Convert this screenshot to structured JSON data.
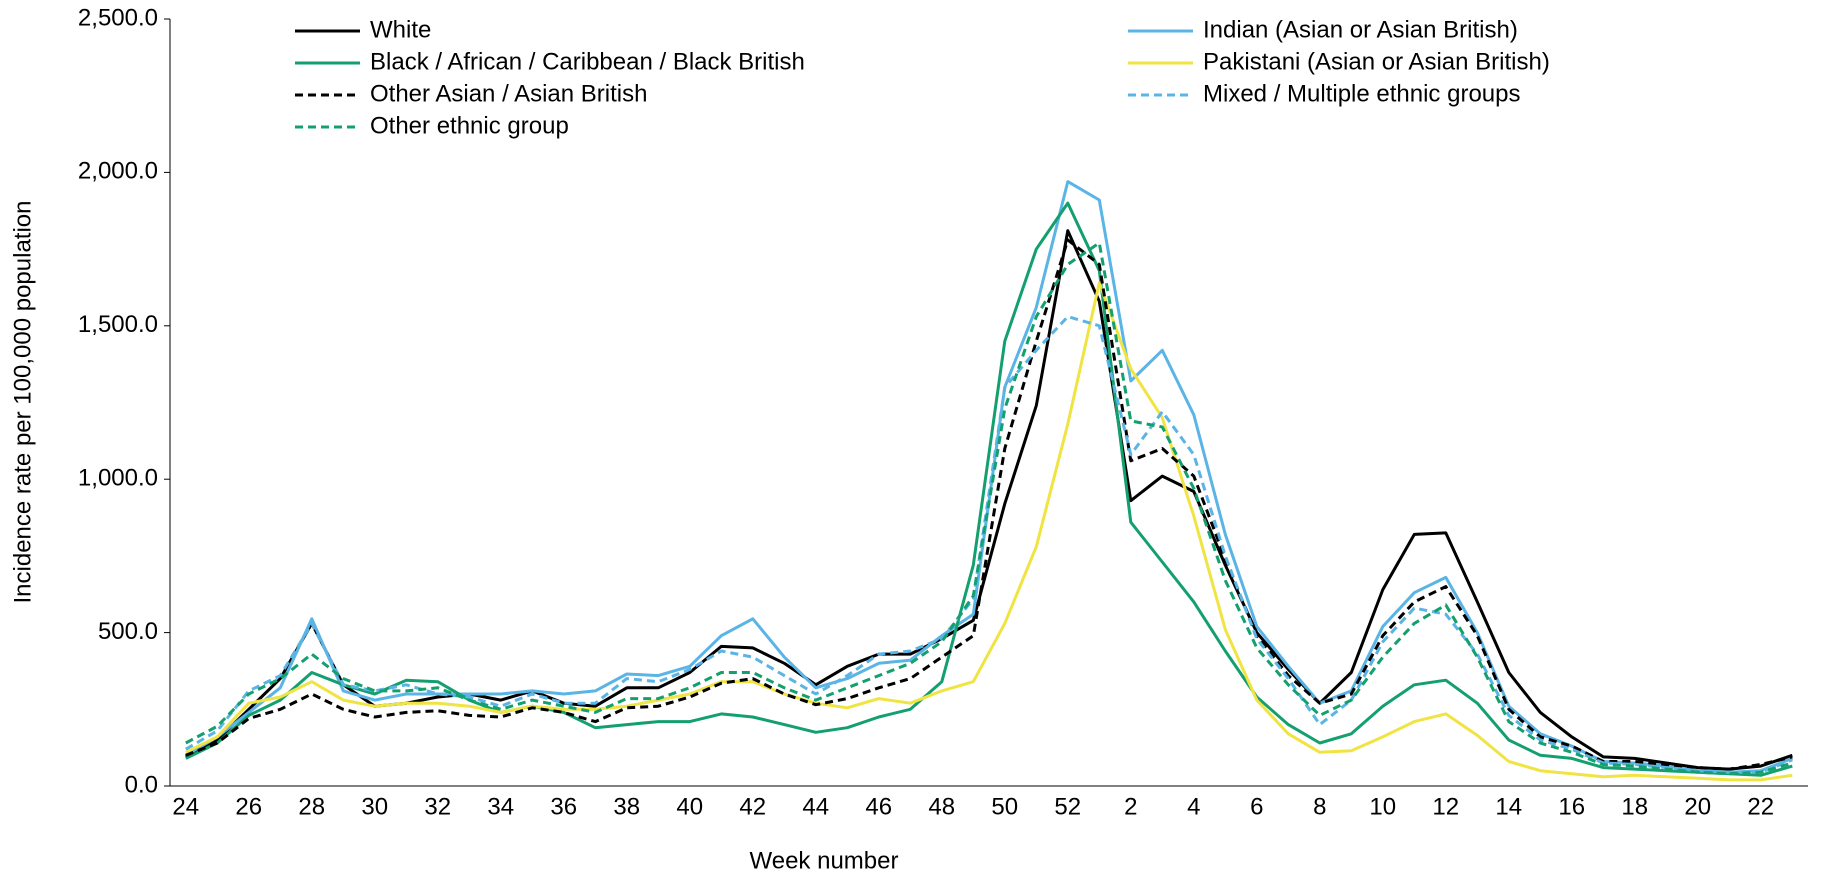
{
  "chart_data": {
    "type": "line",
    "x_label": "Week number",
    "y_label": "Incidence rate per 100,000 population",
    "categories": [
      "24",
      null,
      "26",
      null,
      "28",
      null,
      "30",
      null,
      "32",
      null,
      "34",
      null,
      "36",
      null,
      "38",
      null,
      "40",
      null,
      "42",
      null,
      "44",
      null,
      "46",
      null,
      "48",
      null,
      "50",
      null,
      "52",
      null,
      "2",
      null,
      "4",
      null,
      "6",
      null,
      "8",
      null,
      "10",
      null,
      "12",
      null,
      "14",
      null,
      "16",
      null,
      "18",
      null,
      "20",
      null,
      "22",
      null
    ],
    "ylim": [
      0,
      2500
    ],
    "yticks": [
      {
        "value": 0,
        "label": "0.0"
      },
      {
        "value": 500,
        "label": "500.0"
      },
      {
        "value": 1000,
        "label": "1,000.0"
      },
      {
        "value": 1500,
        "label": "1,500.0"
      },
      {
        "value": 2000,
        "label": "2,000.0"
      },
      {
        "value": 2500,
        "label": "2,500.0"
      }
    ],
    "grid": false,
    "legend": "top",
    "series": [
      {
        "name": "White",
        "color": "#000000",
        "dashed": false,
        "values": [
          95,
          150,
          250,
          350,
          530,
          330,
          260,
          270,
          290,
          300,
          280,
          310,
          270,
          260,
          320,
          320,
          370,
          455,
          450,
          400,
          330,
          390,
          430,
          430,
          480,
          540,
          920,
          1240,
          1810,
          1580,
          930,
          1010,
          960,
          720,
          500,
          380,
          270,
          370,
          640,
          820,
          825,
          600,
          370,
          240,
          160,
          95,
          90,
          75,
          60,
          55,
          65,
          100
        ]
      },
      {
        "name": "Indian (Asian or Asian British)",
        "color": "#5ab4e5",
        "dashed": false,
        "values": [
          100,
          160,
          240,
          320,
          545,
          310,
          280,
          300,
          300,
          300,
          300,
          310,
          300,
          310,
          365,
          360,
          390,
          490,
          545,
          420,
          320,
          350,
          400,
          410,
          490,
          560,
          1300,
          1560,
          1970,
          1910,
          1320,
          1420,
          1210,
          820,
          520,
          390,
          270,
          310,
          520,
          630,
          680,
          500,
          260,
          170,
          130,
          80,
          75,
          65,
          50,
          45,
          50,
          90
        ]
      },
      {
        "name": "Black / African / Caribbean / Black British",
        "color": "#13a06e",
        "dashed": false,
        "values": [
          90,
          140,
          230,
          280,
          370,
          330,
          300,
          345,
          340,
          280,
          240,
          260,
          240,
          190,
          200,
          210,
          210,
          235,
          225,
          200,
          175,
          190,
          225,
          250,
          340,
          720,
          1450,
          1750,
          1900,
          1680,
          860,
          730,
          600,
          440,
          290,
          200,
          140,
          170,
          260,
          330,
          345,
          270,
          150,
          100,
          90,
          60,
          55,
          50,
          45,
          40,
          35,
          65
        ]
      },
      {
        "name": "Pakistani (Asian or Asian British)",
        "color": "#f0e442",
        "dashed": false,
        "values": [
          110,
          160,
          270,
          290,
          340,
          280,
          260,
          270,
          270,
          260,
          240,
          260,
          250,
          250,
          260,
          280,
          300,
          340,
          340,
          300,
          270,
          255,
          285,
          270,
          310,
          340,
          530,
          780,
          1180,
          1640,
          1360,
          1200,
          880,
          510,
          280,
          170,
          110,
          115,
          160,
          210,
          235,
          165,
          80,
          50,
          40,
          30,
          35,
          30,
          25,
          20,
          20,
          35
        ]
      },
      {
        "name": "Other Asian / Asian British",
        "color": "#000000",
        "dashed": true,
        "values": [
          100,
          140,
          220,
          250,
          300,
          250,
          225,
          240,
          245,
          230,
          225,
          255,
          240,
          210,
          255,
          260,
          290,
          335,
          350,
          300,
          265,
          285,
          320,
          350,
          420,
          490,
          1100,
          1450,
          1780,
          1700,
          1060,
          1100,
          1010,
          740,
          490,
          360,
          270,
          300,
          490,
          600,
          650,
          490,
          250,
          160,
          130,
          80,
          80,
          70,
          60,
          55,
          70,
          95
        ]
      },
      {
        "name": "Mixed / Multiple ethnic groups",
        "color": "#5ab4e5",
        "dashed": true,
        "values": [
          120,
          180,
          310,
          360,
          530,
          330,
          310,
          330,
          300,
          290,
          260,
          300,
          270,
          270,
          350,
          340,
          380,
          440,
          420,
          360,
          300,
          360,
          430,
          440,
          480,
          610,
          1300,
          1420,
          1530,
          1500,
          1080,
          1220,
          1080,
          750,
          480,
          350,
          200,
          280,
          470,
          580,
          560,
          430,
          230,
          150,
          120,
          75,
          70,
          60,
          50,
          45,
          45,
          85
        ]
      },
      {
        "name": "Other ethnic group",
        "color": "#13a06e",
        "dashed": true,
        "values": [
          140,
          195,
          300,
          350,
          430,
          350,
          310,
          310,
          320,
          280,
          250,
          280,
          260,
          240,
          285,
          285,
          320,
          370,
          370,
          320,
          280,
          320,
          360,
          400,
          470,
          620,
          1230,
          1530,
          1700,
          1770,
          1190,
          1170,
          970,
          670,
          450,
          330,
          230,
          280,
          420,
          530,
          590,
          420,
          210,
          140,
          110,
          70,
          65,
          55,
          45,
          40,
          45,
          75
        ]
      }
    ]
  }
}
